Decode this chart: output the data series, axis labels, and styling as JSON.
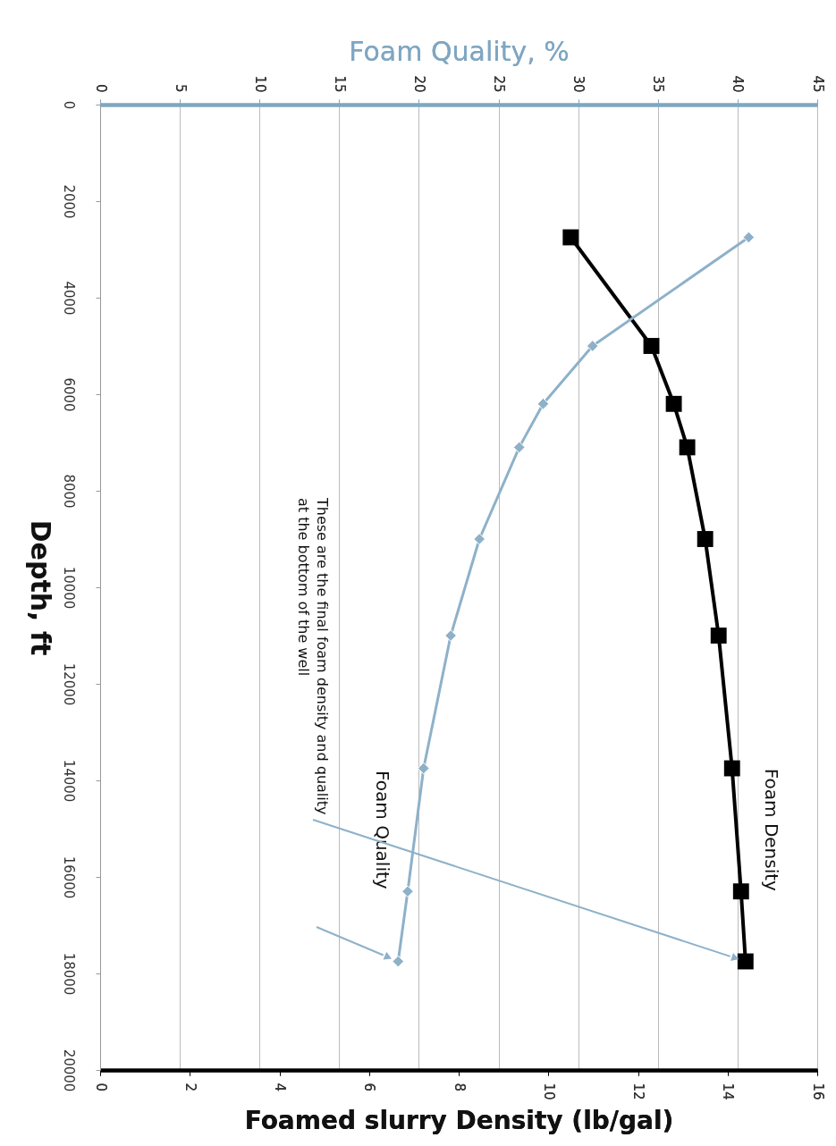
{
  "chart_data": {
    "type": "line",
    "xlabel": "Foamed slurry Density (lb/gal)",
    "x2label": "Foam Quality, %",
    "ylabel": "Depth, ft",
    "xlim": [
      0,
      16
    ],
    "xticks": [
      0,
      2,
      4,
      6,
      8,
      10,
      12,
      14,
      16
    ],
    "x2lim": [
      0,
      45
    ],
    "x2ticks": [
      0,
      5,
      10,
      15,
      20,
      25,
      30,
      35,
      40,
      45
    ],
    "ylim": [
      20000,
      0
    ],
    "yticks": [
      0,
      2000,
      4000,
      6000,
      8000,
      10000,
      12000,
      14000,
      16000,
      18000,
      20000
    ],
    "grid": "x2",
    "series": [
      {
        "name": "Foam Density",
        "color": "#000000",
        "marker": "square",
        "x": [
          10.5,
          12.3,
          12.8,
          13.1,
          13.5,
          13.8,
          14.1,
          14.3,
          14.4
        ],
        "values": [
          2750,
          5000,
          6200,
          7100,
          9000,
          11000,
          13750,
          16300,
          17750
        ]
      },
      {
        "name": "Foam Quality",
        "color": "#8eb1c9",
        "marker": "diamond",
        "axis": "x2",
        "x": [
          40.7,
          30.9,
          27.8,
          26.3,
          23.8,
          22.0,
          20.3,
          19.3,
          18.7
        ],
        "values": [
          2750,
          5000,
          6200,
          7100,
          9000,
          11000,
          13750,
          16300,
          17750
        ]
      }
    ],
    "annotations": [
      "These are the final foam density and quality at the bottom of the well"
    ]
  }
}
